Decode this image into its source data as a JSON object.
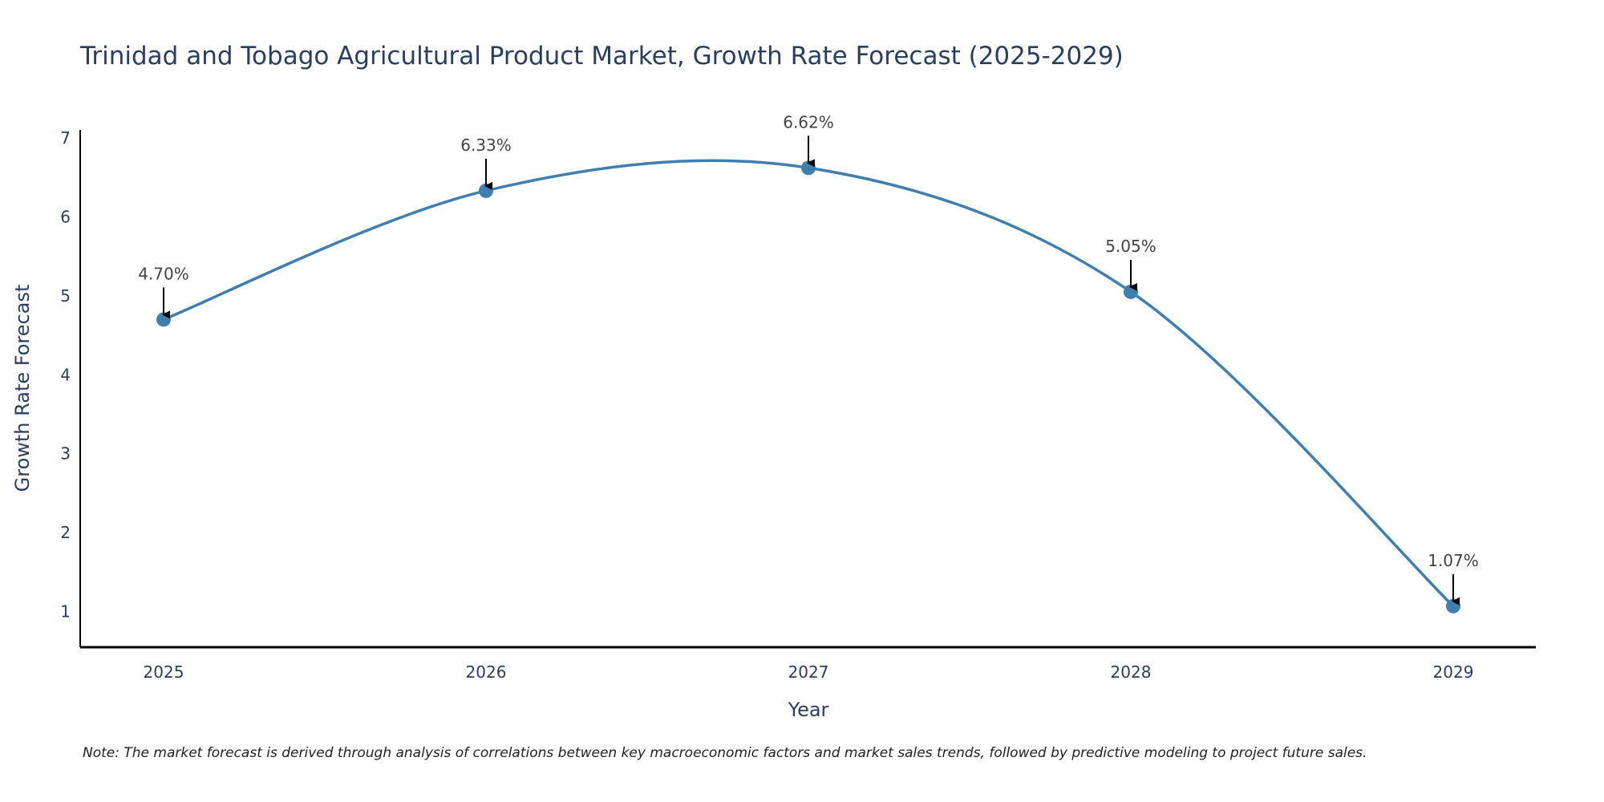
{
  "chart_data": {
    "type": "line",
    "title": "Trinidad and Tobago Agricultural Product Market, Growth Rate Forecast (2025-2029)",
    "xlabel": "Year",
    "ylabel": "Growth Rate Forecast",
    "categories": [
      "2025",
      "2026",
      "2027",
      "2028",
      "2029"
    ],
    "values": [
      4.7,
      6.33,
      6.62,
      5.05,
      1.07
    ],
    "data_labels": [
      "4.70%",
      "6.33%",
      "6.62%",
      "5.05%",
      "1.07%"
    ],
    "y_ticks": [
      1,
      2,
      3,
      4,
      5,
      6,
      7
    ],
    "ylim": [
      0.55,
      7.1
    ],
    "grid": false,
    "line_shape": "spline",
    "colors": {
      "line": "#3f7fb0",
      "marker": "#3f7fb0",
      "axis": "#000000",
      "arrow": "#000000"
    },
    "note": "Note: The market forecast is derived through analysis of correlations between key macroeconomic factors and market sales trends, followed by predictive modeling to project future sales."
  }
}
